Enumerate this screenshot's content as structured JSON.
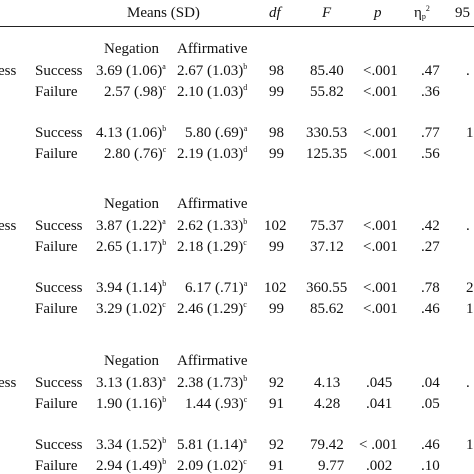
{
  "header": {
    "means": "Means (SD)",
    "df": "df",
    "F": "F",
    "p": "p",
    "eta": "η",
    "eta_sub": "p",
    "eta_sup": "2",
    "ci": "95"
  },
  "blocks": [
    {
      "cond_fragment": "ess",
      "col1": "Negation",
      "col2": "Affirmative",
      "rows": [
        {
          "label": "Success",
          "neg": "3.69 (1.06)",
          "neg_sup": "a",
          "aff": "2.67 (1.03)",
          "aff_sup": "b",
          "df": "98",
          "F": "85.40",
          "p": "<.001",
          "eta": ".47",
          "ci": "."
        },
        {
          "label": "Failure",
          "neg": "2.57 (.98)",
          "neg_sup": "c",
          "aff": "2.10 (1.03)",
          "aff_sup": "d",
          "df": "99",
          "F": "55.82",
          "p": "<.001",
          "eta": ".36",
          "ci": ""
        },
        {
          "label": "Success",
          "neg": "4.13 (1.06)",
          "neg_sup": "b",
          "aff": "5.80 (.69)",
          "aff_sup": "a",
          "df": "98",
          "F": "330.53",
          "p": "<.001",
          "eta": ".77",
          "ci": "1"
        },
        {
          "label": "Failure",
          "neg": "2.80 (.76)",
          "neg_sup": "c",
          "aff": "2.19 (1.03)",
          "aff_sup": "d",
          "df": "99",
          "F": "125.35",
          "p": "<.001",
          "eta": ".56",
          "ci": ""
        }
      ]
    },
    {
      "cond_fragment": "ess",
      "col1": "Negation",
      "col2": "Affirmative",
      "rows": [
        {
          "label": "Success",
          "neg": "3.87 (1.22)",
          "neg_sup": "a",
          "aff": "2.62 (1.33)",
          "aff_sup": "b",
          "df": "102",
          "F": "75.37",
          "p": "<.001",
          "eta": ".42",
          "ci": "."
        },
        {
          "label": "Failure",
          "neg": "2.65 (1.17)",
          "neg_sup": "b",
          "aff": "2.18 (1.29)",
          "aff_sup": "c",
          "df": "99",
          "F": "37.12",
          "p": "<.001",
          "eta": ".27",
          "ci": ""
        },
        {
          "label": "Success",
          "neg": "3.94 (1.14)",
          "neg_sup": "b",
          "aff": "6.17 (.71)",
          "aff_sup": "a",
          "df": "102",
          "F": "360.55",
          "p": "<.001",
          "eta": ".78",
          "ci": "2"
        },
        {
          "label": "Failure",
          "neg": "3.29 (1.02)",
          "neg_sup": "c",
          "aff": "2.46 (1.29)",
          "aff_sup": "c",
          "df": "99",
          "F": "85.62",
          "p": "<.001",
          "eta": ".46",
          "ci": "1"
        }
      ]
    },
    {
      "cond_fragment": "ess",
      "col1": "Negation",
      "col2": "Affirmative",
      "rows": [
        {
          "label": "Success",
          "neg": "3.13 (1.83)",
          "neg_sup": "a",
          "aff": "2.38 (1.73)",
          "aff_sup": "b",
          "df": "92",
          "F": "4.13",
          "p": ".045",
          "eta": ".04",
          "ci": "."
        },
        {
          "label": "Failure",
          "neg": "1.90 (1.16)",
          "neg_sup": "b",
          "aff": "1.44 (.93)",
          "aff_sup": "c",
          "df": "91",
          "F": "4.28",
          "p": ".041",
          "eta": ".05",
          "ci": ""
        },
        {
          "label": "Success",
          "neg": "3.34 (1.52)",
          "neg_sup": "b",
          "aff": "5.81 (1.14)",
          "aff_sup": "a",
          "df": "92",
          "F": "79.42",
          "p": "< .001",
          "eta": ".46",
          "ci": "1"
        },
        {
          "label": "Failure",
          "neg": "2.94 (1.49)",
          "neg_sup": "b",
          "aff": "2.09 (1.02)",
          "aff_sup": "c",
          "df": "91",
          "F": "9.77",
          "p": ".002",
          "eta": ".10",
          "ci": ""
        }
      ]
    }
  ]
}
